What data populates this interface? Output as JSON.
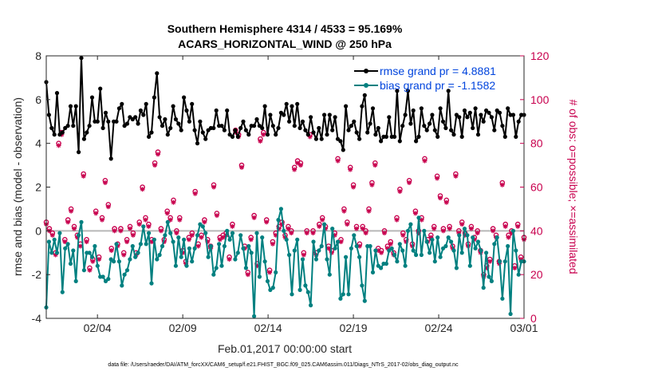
{
  "chart_data": {
    "type": "line",
    "title": "Southern Hemisphere 4314 / 4533 = 95.169%",
    "subtitle": "ACARS_HORIZONTAL_WIND @ 250 hPa",
    "xlabel": "Feb.01,2017 00:00:00 start",
    "ylabel_left": "rmse and bias (model - observation)",
    "ylabel_right": "# of obs: o=possible; ×=assimilated",
    "footer": "data file: /Users/raeder/DAI/ATM_forcXX/CAM6_setup/f.e21.FHIST_BGC.f09_025.CAM6assim.011/Diags_NTrS_2017-02/obs_diag_output.nc",
    "xlim_days": [
      0,
      28
    ],
    "ylim_left": [
      -4,
      8
    ],
    "ylim_right": [
      0,
      120
    ],
    "x_tick_days": [
      3,
      8,
      13,
      18,
      23,
      28
    ],
    "x_tick_labels": [
      "02/04",
      "02/09",
      "02/14",
      "02/19",
      "02/24",
      "03/01"
    ],
    "y_ticks_left": [
      "-4",
      "-2",
      "0",
      "2",
      "4",
      "6",
      "8"
    ],
    "y_ticks_right": [
      "0",
      "20",
      "40",
      "60",
      "80",
      "100",
      "120"
    ],
    "grid": false,
    "legend_position": "top-right",
    "colors": {
      "rmse": "#000000",
      "bias": "#008080",
      "obs": "#c8004e",
      "zero_line": "#b8b8b8"
    },
    "series": [
      {
        "name": "rmse grand pr = 4.8881",
        "style": "line-dots",
        "values": [
          6.8,
          5.3,
          4.7,
          4.4,
          6.3,
          4.4,
          4.5,
          4.7,
          4.8,
          5.7,
          4.8,
          5.7,
          3.6,
          7.9,
          4.2,
          4.5,
          4.8,
          6.1,
          5.0,
          5.0,
          6.5,
          4.7,
          5.4,
          5.0,
          3.3,
          5.0,
          5.0,
          5.6,
          5.8,
          4.8,
          4.9,
          5.2,
          5.1,
          5.2,
          4.9,
          5.5,
          5.3,
          5.8,
          4.3,
          4.5,
          6.1,
          7.2,
          5.2,
          4.8,
          5.1,
          4.4,
          4.7,
          5.7,
          5.1,
          4.9,
          4.6,
          6.1,
          5.5,
          5.0,
          5.8,
          4.6,
          4.0,
          5.0,
          4.5,
          4.2,
          4.6,
          4.7,
          4.7,
          5.5,
          4.8,
          4.8,
          4.6,
          5.5,
          4.4,
          4.3,
          4.6,
          4.3,
          4.7,
          5.0,
          4.6,
          4.4,
          4.8,
          4.8,
          5.1,
          4.8,
          4.7,
          5.7,
          4.4,
          5.3,
          4.8,
          4.4,
          4.7,
          5.4,
          5.3,
          5.8,
          5.0,
          5.7,
          4.8,
          5.8,
          4.7,
          5.0,
          4.6,
          4.4,
          5.2,
          4.5,
          4.2,
          4.7,
          4.2,
          5.3,
          4.4,
          5.3,
          4.6,
          5.2,
          4.2,
          4.1,
          3.7,
          5.7,
          4.6,
          4.8,
          5.0,
          4.5,
          4.2,
          5.7,
          6.2,
          4.5,
          4.9,
          5.6,
          4.4,
          4.7,
          4.1,
          4.3,
          4.3,
          5.2,
          4.3,
          4.3,
          6.4,
          4.1,
          4.8,
          5.3,
          6.4,
          4.9,
          5.5,
          4.1,
          4.3,
          5.6,
          4.8,
          4.6,
          4.9,
          5.3,
          4.6,
          4.3,
          5.6,
          5.0,
          4.7,
          6.4,
          4.6,
          4.4,
          5.3,
          5.2,
          4.3,
          5.5,
          5.2,
          5.4,
          4.7,
          5.6,
          4.4,
          5.3,
          5.0,
          5.5,
          5.4,
          5.2,
          4.6,
          5.5,
          5.4,
          4.8,
          4.3,
          5.6,
          5.3,
          5.3,
          4.3,
          5.0,
          5.3,
          5.3
        ]
      },
      {
        "name": "bias grand pr = -1.1582",
        "style": "line-dots",
        "values": [
          -3.5,
          -0.5,
          -1.0,
          -0.4,
          -1.0,
          -0.1,
          -2.8,
          -0.8,
          -0.6,
          -1.5,
          -0.9,
          -2.3,
          -0.2,
          0.4,
          -1.8,
          -1.0,
          -1.0,
          -1.2,
          -0.7,
          -1.6,
          -2.1,
          -2.1,
          -2.3,
          -2.2,
          -1.3,
          -1.4,
          -0.6,
          -1.4,
          -2.5,
          -2.0,
          -1.8,
          -1.3,
          -0.7,
          -1.2,
          -1.0,
          -0.6,
          0.2,
          -0.6,
          -0.1,
          -2.4,
          -0.4,
          -1.3,
          -1.1,
          -0.7,
          -0.2,
          0.4,
          -0.1,
          -0.5,
          -1.6,
          -0.3,
          -1.2,
          -0.4,
          -1.6,
          -0.8,
          -1.4,
          -0.8,
          -0.2,
          0.3,
          0.2,
          -0.1,
          -1.2,
          -0.7,
          -2.0,
          -1.7,
          -0.6,
          -1.6,
          -0.7,
          0.0,
          -0.4,
          -0.1,
          -1.3,
          -1.0,
          -0.2,
          -0.8,
          -1.7,
          -0.7,
          -1.0,
          -3.9,
          -0.1,
          -2.1,
          -0.3,
          -1.4,
          -2.3,
          -2.7,
          -2.6,
          -1.9,
          0.5,
          1.0,
          0.0,
          -0.4,
          -1.1,
          -2.9,
          -0.9,
          -0.4,
          -2.7,
          -1.3,
          -2.5,
          -2.8,
          -3.4,
          -0.5,
          -1.3,
          -0.9,
          -0.7,
          0.3,
          -1.3,
          -2.0,
          0.1,
          -0.8,
          -0.5,
          -3.1,
          -2.9,
          -1.2,
          -2.9,
          -0.8,
          -0.2,
          -0.7,
          -1.2,
          -2.5,
          -3.2,
          -0.7,
          -0.7,
          -1.9,
          -0.9,
          -1.6,
          -1.7,
          -1.5,
          -1.5,
          -0.9,
          -0.8,
          -1.1,
          -1.4,
          -0.6,
          -0.9,
          -1.6,
          0.0,
          0.3,
          -0.9,
          -1.1,
          0.6,
          -1.1,
          0.0,
          -0.5,
          -1.0,
          -0.4,
          -1.4,
          -0.3,
          -1.2,
          -0.8,
          -0.7,
          -0.3,
          -0.5,
          -0.9,
          -1.7,
          -0.2,
          -1.0,
          0.1,
          -0.2,
          -1.6,
          -0.3,
          -0.8,
          -0.5,
          -0.9,
          -2.6,
          -1.0,
          -2.1,
          -2.3,
          -0.6,
          -0.3,
          -1.4,
          -3.1,
          -1.4,
          -0.7,
          -3.8,
          0.0,
          -0.9,
          -2.0,
          -1.4,
          -1.4
        ]
      },
      {
        "name": "possible obs",
        "axis": "right",
        "style": "circles",
        "values": [
          44,
          41,
          39,
          30,
          80,
          85,
          36,
          45,
          50,
          42,
          38,
          34,
          66,
          36,
          23,
          27,
          49,
          28,
          46,
          63,
          52,
          32,
          41,
          34,
          41,
          30,
          36,
          42,
          39,
          30,
          44,
          60,
          46,
          43,
          36,
          71,
          76,
          41,
          36,
          49,
          46,
          54,
          40,
          46,
          31,
          26,
          37,
          39,
          58,
          34,
          38,
          45,
          36,
          33,
          61,
          48,
          37,
          38,
          39,
          28,
          43,
          86,
          84,
          70,
          33,
          21,
          37,
          47,
          25,
          82,
          85,
          45,
          22,
          35,
          39,
          42,
          44,
          38,
          42,
          40,
          69,
          72,
          71,
          30,
          40,
          84,
          40,
          30,
          43,
          46,
          42,
          33,
          31,
          39,
          73,
          36,
          50,
          44,
          69,
          61,
          42,
          34,
          42,
          40,
          50,
          62,
          71,
          32,
          31,
          40,
          33,
          35,
          30,
          46,
          59,
          39,
          36,
          63,
          34,
          49,
          40,
          46,
          73,
          36,
          38,
          42,
          65,
          56,
          41,
          54,
          42,
          33,
          66,
          40,
          44,
          39,
          34,
          42,
          37,
          40,
          31,
          20,
          24,
          27,
          41,
          38,
          26,
          62,
          43,
          38,
          40,
          24,
          43,
          28,
          37
        ]
      },
      {
        "name": "assimilated obs",
        "axis": "right",
        "style": "crosses",
        "values": [
          43,
          40,
          38,
          29,
          79,
          84,
          35,
          44,
          49,
          41,
          37,
          33,
          65,
          35,
          22,
          26,
          48,
          27,
          45,
          62,
          51,
          31,
          40,
          33,
          40,
          29,
          35,
          41,
          38,
          29,
          43,
          59,
          45,
          42,
          35,
          70,
          75,
          40,
          35,
          48,
          45,
          53,
          39,
          45,
          30,
          25,
          36,
          38,
          57,
          33,
          37,
          44,
          35,
          32,
          60,
          47,
          36,
          37,
          38,
          27,
          42,
          85,
          83,
          69,
          32,
          20,
          36,
          46,
          24,
          81,
          84,
          44,
          21,
          34,
          38,
          41,
          43,
          37,
          41,
          39,
          68,
          71,
          70,
          29,
          39,
          83,
          39,
          29,
          42,
          45,
          41,
          32,
          30,
          38,
          72,
          35,
          49,
          43,
          68,
          60,
          41,
          33,
          41,
          39,
          49,
          61,
          70,
          31,
          30,
          39,
          32,
          34,
          29,
          45,
          58,
          38,
          35,
          62,
          33,
          48,
          39,
          45,
          72,
          35,
          37,
          41,
          64,
          55,
          40,
          53,
          41,
          32,
          65,
          39,
          43,
          38,
          33,
          41,
          36,
          39,
          30,
          19,
          23,
          26,
          40,
          37,
          25,
          61,
          42,
          37,
          39,
          23,
          42,
          27,
          36
        ]
      }
    ]
  }
}
